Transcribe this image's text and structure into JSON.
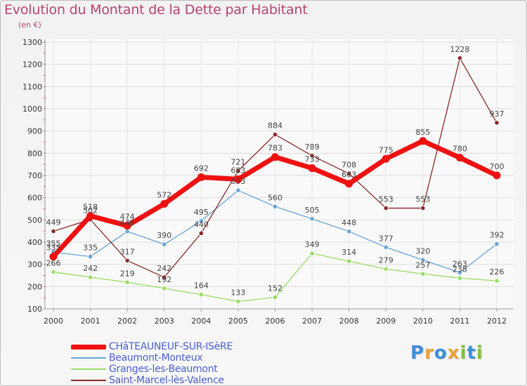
{
  "header": {
    "title": "Evolution du Montant de la Dette par Habitant",
    "subtitle": "(en €)"
  },
  "brand": {
    "letters": [
      "P",
      "r",
      "o",
      "x",
      "i",
      "t",
      "i"
    ],
    "colors": [
      "#3f8fd8",
      "#e9a23b",
      "#3f8fd8",
      "#e9a23b",
      "#7cc242",
      "#3f8fd8",
      "#7cc242"
    ]
  },
  "chart_data": {
    "type": "line",
    "title": "Evolution du Montant de la Dette par Habitant",
    "subtitle": "(en €)",
    "x": [
      "2000",
      "2001",
      "2002",
      "2003",
      "2004",
      "2005",
      "2006",
      "2007",
      "2008",
      "2009",
      "2010",
      "2011",
      "2012"
    ],
    "ylim": [
      100,
      1300
    ],
    "yticks": [
      100,
      200,
      300,
      400,
      500,
      600,
      700,
      800,
      900,
      1000,
      1100,
      1200,
      1300
    ],
    "grid": true,
    "legend_position": "bottom-left",
    "series": [
      {
        "name": "CHâTEAUNEUF-SUR-ISèRE",
        "color": "#ee1111",
        "values": [
          335,
          518,
          474,
          572,
          692,
          683,
          783,
          733,
          663,
          775,
          855,
          780,
          700
        ]
      },
      {
        "name": "Beaumont-Monteux",
        "color": "#6aa3d6",
        "values": [
          355,
          335,
          448,
          390,
          495,
          633,
          560,
          505,
          448,
          377,
          320,
          263,
          392
        ]
      },
      {
        "name": "Granges-les-Beaumont",
        "color": "#99dd66",
        "values": [
          266,
          242,
          219,
          192,
          164,
          133,
          152,
          349,
          314,
          279,
          257,
          238,
          226
        ]
      },
      {
        "name": "Saint-Marcel-lès-Valence",
        "color": "#8a2a2a",
        "values": [
          449,
          502,
          317,
          242,
          440,
          721,
          884,
          789,
          708,
          553,
          553,
          1228,
          937
        ]
      }
    ]
  }
}
